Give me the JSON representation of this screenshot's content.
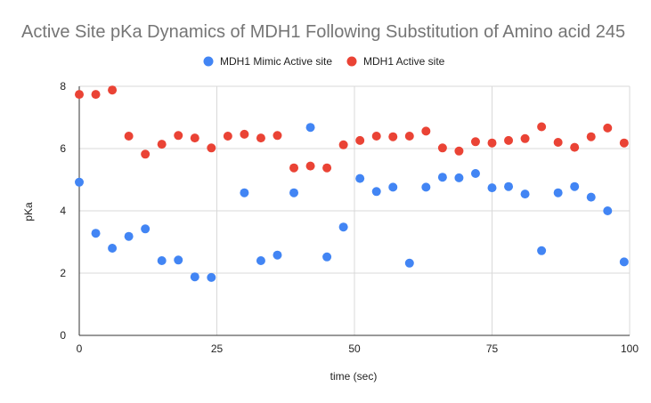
{
  "chart_data": {
    "type": "scatter",
    "title": "Active Site pKa Dynamics of MDH1 Following Substitution of Amino acid 245",
    "xlabel": "time (sec)",
    "ylabel": "pKa",
    "xlim": [
      0,
      100
    ],
    "ylim": [
      0,
      8
    ],
    "x_ticks": [
      "0",
      "25",
      "50",
      "75",
      "100"
    ],
    "y_ticks": [
      "0",
      "2",
      "4",
      "6",
      "8"
    ],
    "grid": true,
    "legend_position": "top",
    "series": [
      {
        "name": "MDH1 Mimic Active site",
        "color": "#4285f4",
        "points": [
          [
            0,
            4.92
          ],
          [
            3,
            3.28
          ],
          [
            6,
            2.8
          ],
          [
            9,
            3.18
          ],
          [
            12,
            3.42
          ],
          [
            15,
            2.4
          ],
          [
            18,
            2.42
          ],
          [
            21,
            1.88
          ],
          [
            24,
            1.86
          ],
          [
            30,
            4.58
          ],
          [
            33,
            2.4
          ],
          [
            36,
            2.58
          ],
          [
            39,
            4.58
          ],
          [
            42,
            6.68
          ],
          [
            45,
            2.52
          ],
          [
            48,
            3.48
          ],
          [
            51,
            5.04
          ],
          [
            54,
            4.62
          ],
          [
            57,
            4.76
          ],
          [
            60,
            2.32
          ],
          [
            63,
            4.76
          ],
          [
            66,
            5.08
          ],
          [
            69,
            5.06
          ],
          [
            72,
            5.2
          ],
          [
            75,
            4.74
          ],
          [
            78,
            4.78
          ],
          [
            81,
            4.54
          ],
          [
            84,
            2.72
          ],
          [
            87,
            4.58
          ],
          [
            90,
            4.78
          ],
          [
            93,
            4.44
          ],
          [
            96,
            4.0
          ],
          [
            99,
            2.36
          ]
        ]
      },
      {
        "name": "MDH1 Active site",
        "color": "#ea4335",
        "points": [
          [
            0,
            7.74
          ],
          [
            3,
            7.74
          ],
          [
            6,
            7.88
          ],
          [
            9,
            6.4
          ],
          [
            12,
            5.82
          ],
          [
            15,
            6.14
          ],
          [
            18,
            6.42
          ],
          [
            21,
            6.34
          ],
          [
            24,
            6.02
          ],
          [
            27,
            6.4
          ],
          [
            30,
            6.46
          ],
          [
            33,
            6.34
          ],
          [
            36,
            6.42
          ],
          [
            39,
            5.38
          ],
          [
            42,
            5.44
          ],
          [
            45,
            5.38
          ],
          [
            48,
            6.12
          ],
          [
            51,
            6.26
          ],
          [
            54,
            6.4
          ],
          [
            57,
            6.38
          ],
          [
            60,
            6.4
          ],
          [
            63,
            6.56
          ],
          [
            66,
            6.02
          ],
          [
            69,
            5.92
          ],
          [
            72,
            6.22
          ],
          [
            75,
            6.18
          ],
          [
            78,
            6.26
          ],
          [
            81,
            6.32
          ],
          [
            84,
            6.7
          ],
          [
            87,
            6.2
          ],
          [
            90,
            6.04
          ],
          [
            93,
            6.38
          ],
          [
            96,
            6.66
          ],
          [
            99,
            6.18
          ]
        ]
      }
    ]
  }
}
